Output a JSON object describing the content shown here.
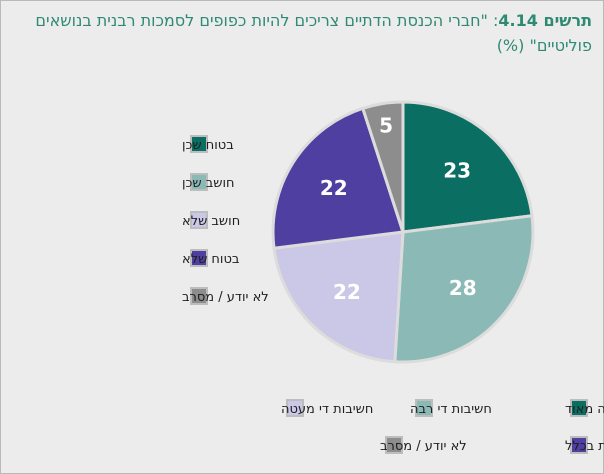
{
  "title": {
    "prefix": "תרשים",
    "number": "4.14",
    "text": ": \"חברי הכנסת הדתיים צריכים להיות כפופים לסמכות רבנית בנושאים פוליטיים\" (%)"
  },
  "colors": {
    "background": "#ececec",
    "title": "#2e8a72",
    "label_light": "#ffffff",
    "divider": "#dcdcdc"
  },
  "chart_data": {
    "type": "pie",
    "unit": "%",
    "start_angle_deg": 0,
    "direction": "clockwise",
    "slices": [
      {
        "value": 23,
        "label": "23",
        "legend": "בטוח שכן",
        "color": "#0b6e62",
        "label_color": "#ffffff"
      },
      {
        "value": 28,
        "label": "28",
        "legend": "חושב שכן",
        "color": "#8bbab6",
        "label_color": "#ffffff"
      },
      {
        "value": 22,
        "label": "22",
        "legend": "חושב שלא",
        "color": "#cbc7e6",
        "label_color": "#ffffff"
      },
      {
        "value": 22,
        "label": "22",
        "legend": "בטוח שלא",
        "color": "#4e3fa0",
        "label_color": "#ffffff"
      },
      {
        "value": 5,
        "label": "5",
        "legend": "לא יודע / מסרב",
        "color": "#8d8d8d",
        "label_color": "#ffffff"
      }
    ]
  },
  "side_legend": [
    {
      "text": "בטוח שכן",
      "color": "#0b6e62"
    },
    {
      "text": "חושב שכן",
      "color": "#8bbab6"
    },
    {
      "text": "חושב שלא",
      "color": "#cbc7e6"
    },
    {
      "text": "בטוח שלא",
      "color": "#4e3fa0"
    },
    {
      "text": "לא יודע / מסרב",
      "color": "#8d8d8d"
    }
  ],
  "bottom_legend": [
    {
      "text": "חשיבות רבה מאוד",
      "color": "#0b6e62"
    },
    {
      "text": "חשיבות די רבה",
      "color": "#8bbab6"
    },
    {
      "text": "חשיבות די מעטה",
      "color": "#cbc7e6"
    },
    {
      "text": "לא תהיה חשיבות בכלל",
      "color": "#4e3fa0"
    },
    {
      "text": "לא יודע / מסרב",
      "color": "#8d8d8d"
    }
  ]
}
